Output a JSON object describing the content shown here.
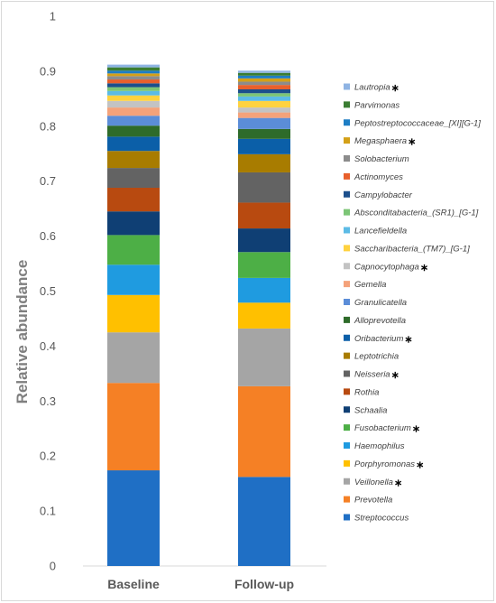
{
  "chart_data": {
    "type": "bar",
    "stacked": true,
    "ylabel": "Relative abundance",
    "xlabel": "",
    "ylim": [
      0,
      1
    ],
    "yticks": [
      "0",
      "0.1",
      "0.2",
      "0.3",
      "0.4",
      "0.5",
      "0.6",
      "0.7",
      "0.8",
      "0.9",
      "1"
    ],
    "categories": [
      "Baseline",
      "Follow-up"
    ],
    "grid": false,
    "legend_position": "right",
    "series": [
      {
        "name": "Streptococcus",
        "color": "#1f6fc5",
        "star": false,
        "values": [
          0.174,
          0.162
        ]
      },
      {
        "name": "Prevotella",
        "color": "#f58025",
        "star": false,
        "values": [
          0.159,
          0.165
        ]
      },
      {
        "name": "Veillonella",
        "color": "#a5a5a5",
        "star": true,
        "values": [
          0.092,
          0.105
        ]
      },
      {
        "name": "Porphyromonas",
        "color": "#ffc000",
        "star": true,
        "values": [
          0.068,
          0.047
        ]
      },
      {
        "name": "Haemophilus",
        "color": "#1f9be0",
        "star": false,
        "values": [
          0.055,
          0.045
        ]
      },
      {
        "name": "Fusobacterium",
        "color": "#4daf46",
        "star": true,
        "values": [
          0.054,
          0.047
        ]
      },
      {
        "name": "Schaalia",
        "color": "#0f3f74",
        "star": false,
        "values": [
          0.043,
          0.043
        ]
      },
      {
        "name": "Rothia",
        "color": "#b84a10",
        "star": false,
        "values": [
          0.043,
          0.047
        ]
      },
      {
        "name": "Neisseria",
        "color": "#636363",
        "star": true,
        "values": [
          0.036,
          0.055
        ]
      },
      {
        "name": "Leptotrichia",
        "color": "#a87c00",
        "star": false,
        "values": [
          0.031,
          0.033
        ]
      },
      {
        "name": "Oribacterium",
        "color": "#0b5fa8",
        "star": true,
        "values": [
          0.026,
          0.028
        ]
      },
      {
        "name": "Alloprevotella",
        "color": "#2e6b2a",
        "star": false,
        "values": [
          0.02,
          0.018
        ]
      },
      {
        "name": "Granulicatella",
        "color": "#5b8dd8",
        "star": false,
        "values": [
          0.018,
          0.02
        ]
      },
      {
        "name": "Gemella",
        "color": "#f4a27a",
        "star": false,
        "values": [
          0.015,
          0.01
        ]
      },
      {
        "name": "Capnocytophaga",
        "color": "#c3c3c3",
        "star": true,
        "values": [
          0.012,
          0.009
        ]
      },
      {
        "name": "Saccharibacteria_(TM7)_[G-1]",
        "color": "#ffd23f",
        "star": false,
        "values": [
          0.01,
          0.012
        ]
      },
      {
        "name": "Lancefieldella",
        "color": "#5cbbe6",
        "star": false,
        "values": [
          0.008,
          0.008
        ]
      },
      {
        "name": "Absconditabacteria_(SR1)_[G-1]",
        "color": "#7cc576",
        "star": false,
        "values": [
          0.007,
          0.006
        ]
      },
      {
        "name": "Campylobacter",
        "color": "#1c4f8c",
        "star": false,
        "values": [
          0.007,
          0.007
        ]
      },
      {
        "name": "Actinomyces",
        "color": "#e8602c",
        "star": false,
        "values": [
          0.007,
          0.008
        ]
      },
      {
        "name": "Solobacterium",
        "color": "#8c8c8c",
        "star": false,
        "values": [
          0.006,
          0.006
        ]
      },
      {
        "name": "Megasphaera",
        "color": "#d4a017",
        "star": true,
        "values": [
          0.005,
          0.006
        ]
      },
      {
        "name": "Peptostreptococcaceae_[XI][G-1]",
        "color": "#1d7dc4",
        "star": false,
        "values": [
          0.005,
          0.005
        ]
      },
      {
        "name": "Parvimonas",
        "color": "#3a7d32",
        "star": false,
        "values": [
          0.006,
          0.005
        ]
      },
      {
        "name": "Lautropia",
        "color": "#8fb4e3",
        "star": true,
        "values": [
          0.005,
          0.004
        ]
      }
    ]
  }
}
